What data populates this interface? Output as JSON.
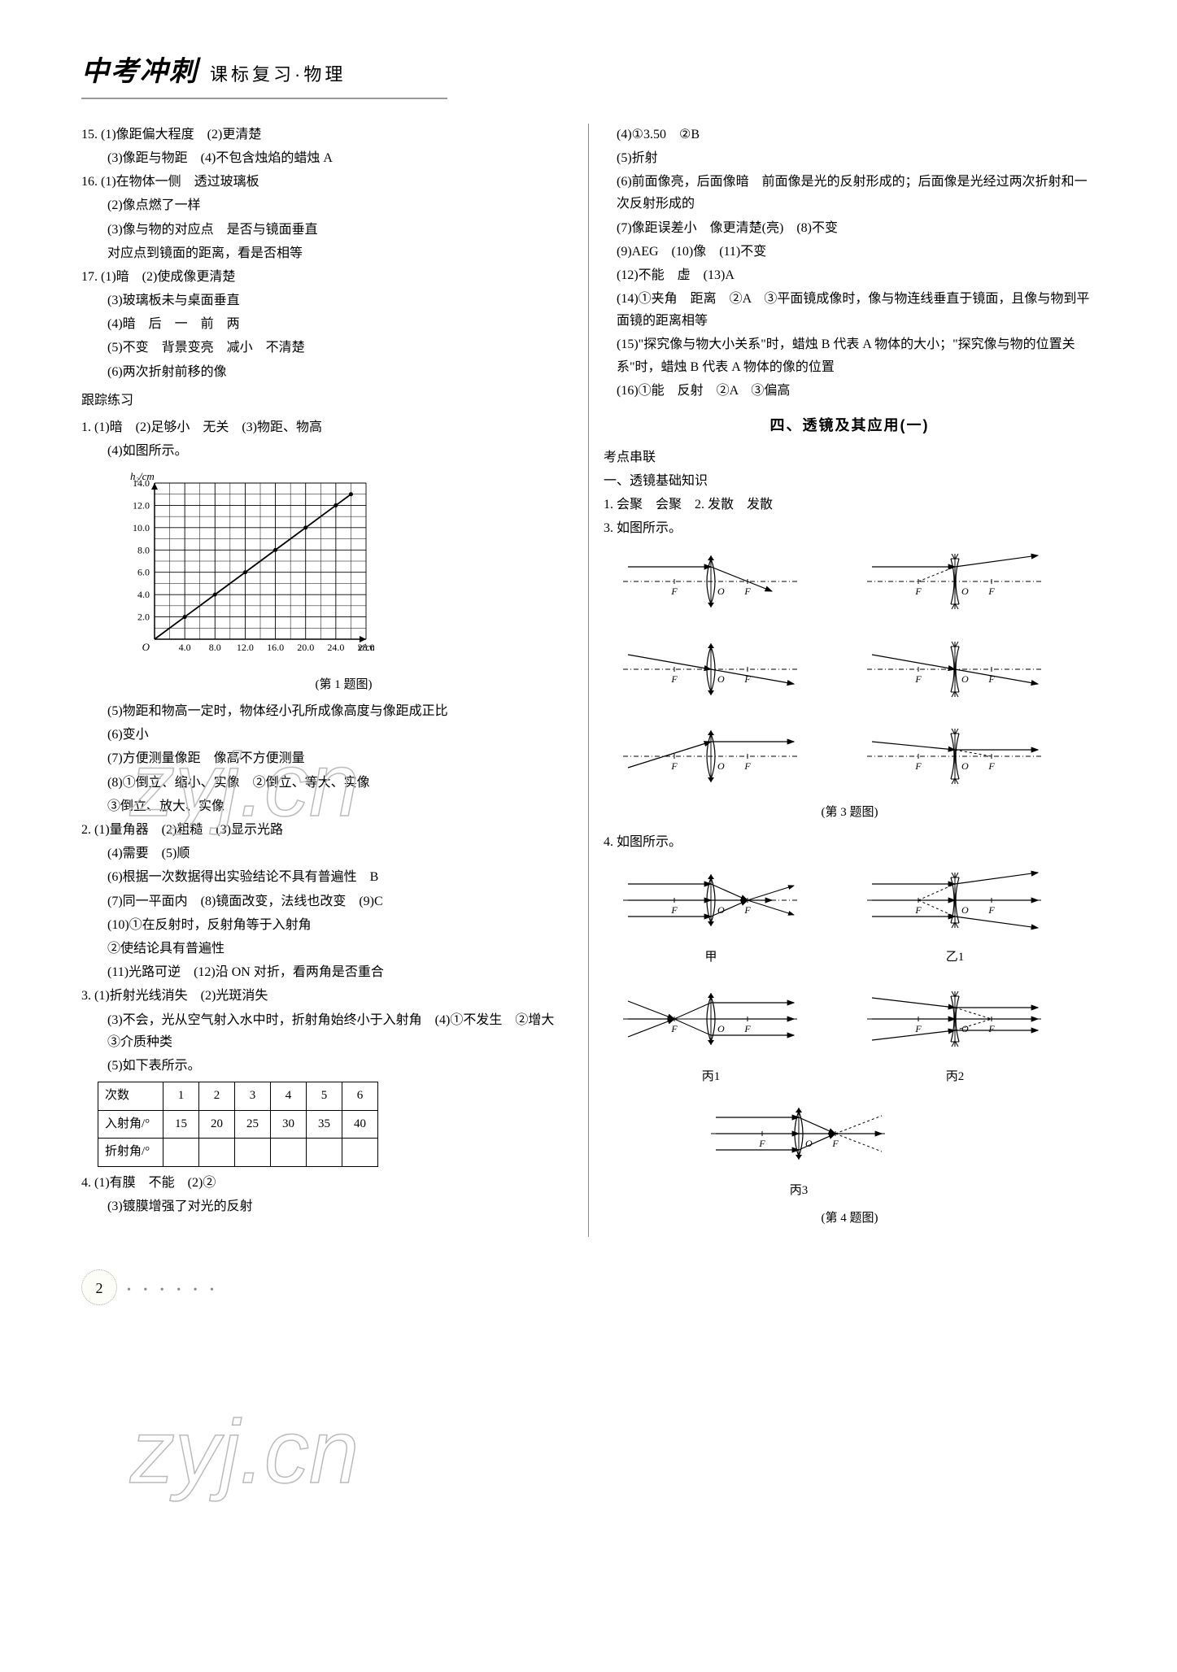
{
  "header": {
    "title": "中考冲刺",
    "sub": "课标复习·物理"
  },
  "left": {
    "q15": {
      "l1": "15. (1)像距偏大程度　(2)更清楚",
      "l2": "(3)像距与物距　(4)不包含烛焰的蜡烛 A"
    },
    "q16": {
      "l1": "16. (1)在物体一侧　透过玻璃板",
      "l2": "(2)像点燃了一样",
      "l3": "(3)像与物的对应点　是否与镜面垂直",
      "l4": "对应点到镜面的距离，看是否相等"
    },
    "q17": {
      "l1": "17. (1)暗　(2)使成像更清楚",
      "l2": "(3)玻璃板未与桌面垂直",
      "l3": "(4)暗　后　一　前　两",
      "l4": "(5)不变　背景变亮　减小　不清楚",
      "l5": "(6)两次折射前移的像"
    },
    "track_label": "跟踪练习",
    "t1": {
      "l1": "1. (1)暗　(2)足够小　无关　(3)物距、物高",
      "l2": "(4)如图所示。",
      "chart": {
        "ylabel": "h₂/cm",
        "xlabel_ticks": [
          "4.0",
          "8.0",
          "12.0",
          "16.0",
          "20.0",
          "24.0",
          "28.0"
        ],
        "xlabel_suffix": "v/cm",
        "ylabel_ticks": [
          "2.0",
          "4.0",
          "6.0",
          "8.0",
          "10.0",
          "12.0",
          "14.0"
        ],
        "caption": "(第 1 题图)",
        "points": [
          [
            4,
            2
          ],
          [
            8,
            4
          ],
          [
            12,
            6
          ],
          [
            16,
            8
          ],
          [
            20,
            10
          ],
          [
            24,
            12
          ],
          [
            26,
            13
          ]
        ],
        "xmax": 28,
        "ymax": 14,
        "grid_color": "#000",
        "line_color": "#000"
      },
      "l3": "(5)物距和物高一定时，物体经小孔所成像高度与像距成正比",
      "l3b": "",
      "l4": "(6)变小",
      "l5": "(7)方便测量像距　像高不方便测量",
      "l6": "(8)①倒立、缩小、实像　②倒立、等大、实像",
      "l7": "③倒立、放大、实像"
    },
    "t2": {
      "l1": "2. (1)量角器　(2)粗糙　(3)显示光路",
      "l2": "(4)需要　(5)顺",
      "l3": "(6)根据一次数据得出实验结论不具有普遍性　B",
      "l4": "(7)同一平面内　(8)镜面改变，法线也改变　(9)C",
      "l5": "(10)①在反射时，反射角等于入射角",
      "l6": "②使结论具有普遍性",
      "l7": "(11)光路可逆　(12)沿 ON 对折，看两角是否重合"
    },
    "t3": {
      "l1": "3. (1)折射光线消失　(2)光斑消失",
      "l2": "(3)不会，光从空气射入水中时，折射角始终小于入射角　(4)①不发生　②增大　③介质种类",
      "l3": "",
      "l4": "(5)如下表所示。",
      "table": {
        "row_labels": [
          "次数",
          "入射角/°",
          "折射角/°"
        ],
        "cols": [
          "1",
          "2",
          "3",
          "4",
          "5",
          "6"
        ],
        "incidence": [
          "15",
          "20",
          "25",
          "30",
          "35",
          "40"
        ],
        "refraction": [
          "",
          "",
          "",
          "",
          "",
          ""
        ]
      }
    },
    "t4": {
      "l1": "4. (1)有膜　不能　(2)②",
      "l2": "(3)镀膜增强了对光的反射"
    }
  },
  "right": {
    "cont": {
      "l1": "(4)①3.50　②B",
      "l2": "(5)折射",
      "l3": "(6)前面像亮，后面像暗　前面像是光的反射形成的；后面像是光经过两次折射和一次反射形成的",
      "l4": "(7)像距误差小　像更清楚(亮)　(8)不变",
      "l5": "(9)AEG　(10)像　(11)不变",
      "l6": "(12)不能　虚　(13)A",
      "l7": "(14)①夹角　距离　②A　③平面镜成像时，像与物连线垂直于镜面，且像与物到平面镜的距离相等",
      "l8": "(15)\"探究像与物大小关系\"时，蜡烛 B 代表 A 物体的大小；\"探究像与物的位置关系\"时，蜡烛 B 代表 A 物体的像的位置",
      "l9": "(16)①能　反射　②A　③偏高"
    },
    "section_title": "四、透镜及其应用(一)",
    "kaodian": "考点串联",
    "sub1": "一、透镜基础知识",
    "a1": "1. 会聚　会聚　2. 发散　发散",
    "a3": "3. 如图所示。",
    "fig3_caption": "(第 3 题图)",
    "a4": "4. 如图所示。",
    "fig4_labels": {
      "a": "甲",
      "b": "乙1",
      "c": "丙1",
      "d": "丙2",
      "e": "丙3"
    },
    "fig4_caption": "(第 4 题图)"
  },
  "page_number": "2",
  "watermark": "zyj.cn"
}
